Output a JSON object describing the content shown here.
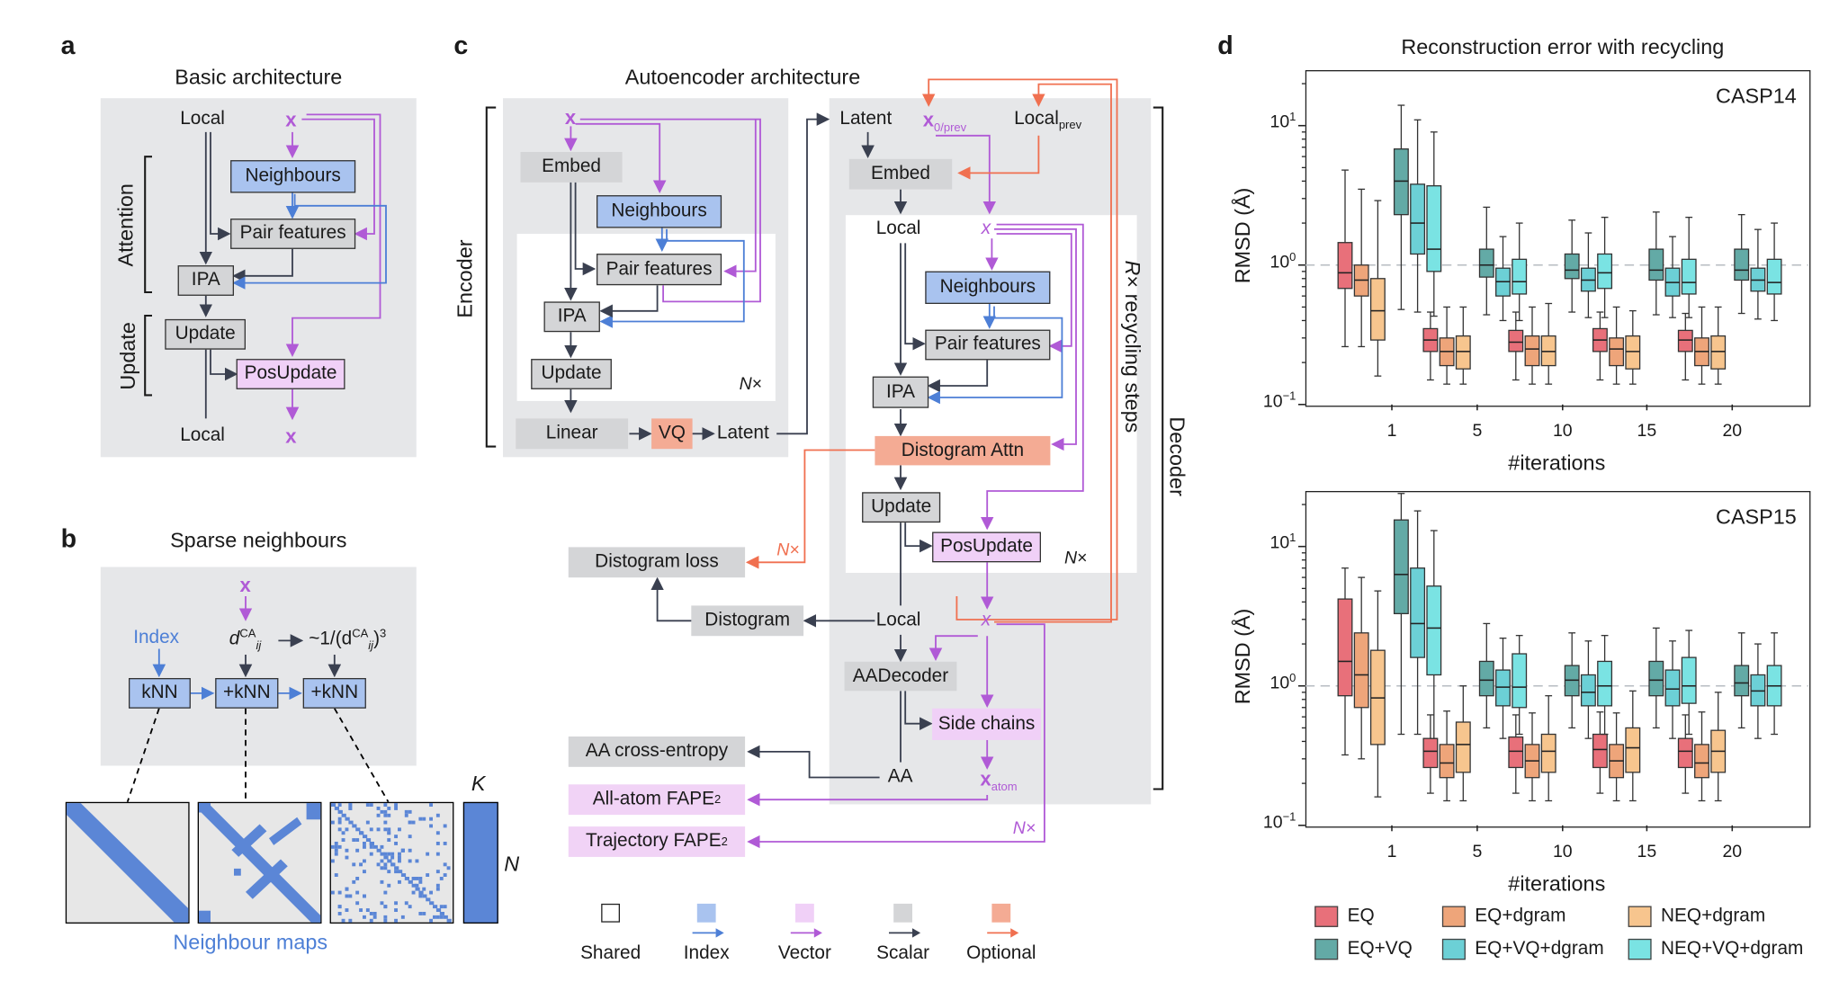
{
  "panel_a": {
    "letter": "a",
    "title": "Basic architecture",
    "local_top": "Local",
    "x_top": "x",
    "neighbours": "Neighbours",
    "pair_features": "Pair features",
    "ipa": "IPA",
    "update": "Update",
    "posupdate": "PosUpdate",
    "local_bottom": "Local",
    "x_bottom": "x",
    "attention_label": "Attention",
    "update_label": "Update"
  },
  "panel_b": {
    "letter": "b",
    "title": "Sparse neighbours",
    "x": "x",
    "index": "Index",
    "d_base": "d",
    "d_sup": "CA",
    "d_sub": "ij",
    "inv_prefix": "~1/(d",
    "inv_sup": "CA",
    "inv_sub": "ij",
    "inv_suffix": ")",
    "inv_pow": "3",
    "knn": "kNN",
    "knn_plus_1": "+kNN",
    "knn_plus_2": "+kNN",
    "maps_caption": "Neighbour maps",
    "k_label": "K",
    "n_label": "N"
  },
  "panel_c": {
    "letter": "c",
    "title": "Autoencoder architecture",
    "encoder_label": "Encoder",
    "decoder_label": "Decoder",
    "recycle_label_r": "R",
    "recycle_label_rest": "× recycling steps",
    "enc": {
      "x": "x",
      "embed": "Embed",
      "neighbours": "Neighbours",
      "pair_features": "Pair features",
      "ipa": "IPA",
      "update": "Update",
      "nx_n": "N",
      "nx_x": "×",
      "linear": "Linear",
      "vq": "VQ",
      "latent": "Latent"
    },
    "dec": {
      "latent": "Latent",
      "x0": "x",
      "x0_sub": "0/prev",
      "local_prev": "Local",
      "local_prev_sub": "prev",
      "embed": "Embed",
      "local": "Local",
      "x_small": "x",
      "neighbours": "Neighbours",
      "pair_features": "Pair features",
      "ipa": "IPA",
      "distogram_attn": "Distogram Attn",
      "update": "Update",
      "posupdate": "PosUpdate",
      "nx_n": "N",
      "nx_x": "×",
      "local2": "Local",
      "x2": "x",
      "aadecoder": "AADecoder",
      "side_chains": "Side chains",
      "aa": "AA",
      "x_atom": "x",
      "x_atom_sub": "atom"
    },
    "outputs": {
      "distogram_loss": "Distogram loss",
      "distogram": "Distogram",
      "nx_orange": "N×",
      "aa_ce": "AA cross-entropy",
      "allatom": "All-atom FAPE",
      "allatom_sup": "2",
      "traj": "Trajectory FAPE",
      "traj_sup": "2",
      "nx_purple": "N×"
    },
    "legend": [
      {
        "label": "Shared",
        "color": "#ffffff",
        "arrow": ""
      },
      {
        "label": "Index",
        "color": "#a9c3ef",
        "arrow": "#4d7fd6"
      },
      {
        "label": "Vector",
        "color": "#f0d0f7",
        "arrow": "#b05ad6"
      },
      {
        "label": "Scalar",
        "color": "#d4d5d7",
        "arrow": "#3a4050"
      },
      {
        "label": "Optional",
        "color": "#f4ab94",
        "arrow": "#f07050"
      }
    ]
  },
  "panel_d": {
    "letter": "d",
    "title": "Reconstruction error with recycling",
    "ylabel": "RMSD (Å)",
    "xlabel": "#iterations",
    "yticks": [
      {
        "base": "10",
        "exp": "1"
      },
      {
        "base": "10",
        "exp": "0"
      },
      {
        "base": "10",
        "exp": "−1"
      }
    ],
    "legend": [
      {
        "label": "EQ",
        "color": "#e8707a"
      },
      {
        "label": "EQ+dgram",
        "color": "#eea57a"
      },
      {
        "label": "NEQ+dgram",
        "color": "#f7c58e"
      },
      {
        "label": "EQ+VQ",
        "color": "#63aaa6"
      },
      {
        "label": "EQ+VQ+dgram",
        "color": "#6cd0d6"
      },
      {
        "label": "NEQ+VQ+dgram",
        "color": "#7ae3e3"
      }
    ]
  },
  "chart_data": [
    {
      "type": "box",
      "title": "CASP14",
      "xlabel": "#iterations",
      "ylabel": "RMSD (Å)",
      "yscale": "log",
      "ylim": [
        0.1,
        25
      ],
      "reference_line": 1,
      "categories": [
        "1",
        "5",
        "10",
        "15",
        "20"
      ],
      "series": [
        {
          "name": "EQ",
          "color": "#e8707a",
          "boxes": [
            [
              0.26,
              0.68,
              0.88,
              1.45,
              4.8
            ],
            [
              0.15,
              0.24,
              0.29,
              0.35,
              0.46
            ],
            [
              0.15,
              0.24,
              0.28,
              0.34,
              0.46
            ],
            [
              0.15,
              0.24,
              0.29,
              0.35,
              0.46
            ],
            [
              0.15,
              0.24,
              0.29,
              0.34,
              0.45
            ]
          ]
        },
        {
          "name": "EQ+dgram",
          "color": "#eea57a",
          "boxes": [
            [
              0.26,
              0.6,
              0.78,
              1.0,
              3.5
            ],
            [
              0.14,
              0.19,
              0.24,
              0.3,
              0.5
            ],
            [
              0.14,
              0.19,
              0.25,
              0.31,
              0.5
            ],
            [
              0.14,
              0.19,
              0.25,
              0.3,
              0.5
            ],
            [
              0.14,
              0.19,
              0.24,
              0.3,
              0.5
            ]
          ]
        },
        {
          "name": "NEQ+dgram",
          "color": "#f7c58e",
          "boxes": [
            [
              0.16,
              0.29,
              0.47,
              0.8,
              2.9
            ],
            [
              0.14,
              0.18,
              0.24,
              0.31,
              0.5
            ],
            [
              0.14,
              0.19,
              0.24,
              0.31,
              0.53
            ],
            [
              0.14,
              0.18,
              0.24,
              0.31,
              0.47
            ],
            [
              0.14,
              0.18,
              0.24,
              0.31,
              0.5
            ]
          ]
        },
        {
          "name": "EQ+VQ",
          "color": "#63aaa6",
          "boxes": [
            [
              0.48,
              2.3,
              4.0,
              6.8,
              14.0
            ],
            [
              0.44,
              0.82,
              1.0,
              1.3,
              2.6
            ],
            [
              0.46,
              0.8,
              0.92,
              1.2,
              2.1
            ],
            [
              0.44,
              0.78,
              0.92,
              1.3,
              2.4
            ],
            [
              0.45,
              0.78,
              0.92,
              1.3,
              2.3
            ]
          ]
        },
        {
          "name": "EQ+VQ+dgram",
          "color": "#6cd0d6",
          "boxes": [
            [
              0.46,
              1.2,
              2.0,
              3.8,
              11.0
            ],
            [
              0.4,
              0.6,
              0.76,
              0.95,
              1.6
            ],
            [
              0.42,
              0.65,
              0.78,
              0.95,
              1.7
            ],
            [
              0.42,
              0.6,
              0.75,
              0.95,
              1.6
            ],
            [
              0.41,
              0.65,
              0.78,
              0.95,
              1.8
            ]
          ]
        },
        {
          "name": "NEQ+VQ+dgram",
          "color": "#7ae3e3",
          "boxes": [
            [
              0.43,
              0.9,
              1.3,
              3.7,
              9.0
            ],
            [
              0.4,
              0.62,
              0.76,
              1.1,
              2.0
            ],
            [
              0.42,
              0.68,
              0.88,
              1.2,
              2.2
            ],
            [
              0.42,
              0.62,
              0.75,
              1.1,
              2.2
            ],
            [
              0.4,
              0.62,
              0.75,
              1.1,
              2.0
            ]
          ]
        }
      ]
    },
    {
      "type": "box",
      "title": "CASP15",
      "xlabel": "#iterations",
      "ylabel": "RMSD (Å)",
      "yscale": "log",
      "ylim": [
        0.1,
        25
      ],
      "reference_line": 1,
      "categories": [
        "1",
        "5",
        "10",
        "15",
        "20"
      ],
      "series": [
        {
          "name": "EQ",
          "color": "#e8707a",
          "boxes": [
            [
              0.32,
              0.85,
              1.5,
              4.2,
              7.0
            ],
            [
              0.17,
              0.26,
              0.34,
              0.42,
              0.62
            ],
            [
              0.17,
              0.26,
              0.34,
              0.43,
              0.62
            ],
            [
              0.17,
              0.26,
              0.35,
              0.45,
              0.65
            ],
            [
              0.17,
              0.26,
              0.34,
              0.42,
              0.62
            ]
          ]
        },
        {
          "name": "EQ+dgram",
          "color": "#eea57a",
          "boxes": [
            [
              0.3,
              0.7,
              1.2,
              2.4,
              6.0
            ],
            [
              0.15,
              0.22,
              0.28,
              0.38,
              0.66
            ],
            [
              0.15,
              0.22,
              0.29,
              0.38,
              0.64
            ],
            [
              0.15,
              0.22,
              0.29,
              0.38,
              0.64
            ],
            [
              0.15,
              0.22,
              0.28,
              0.38,
              0.65
            ]
          ]
        },
        {
          "name": "NEQ+dgram",
          "color": "#f7c58e",
          "boxes": [
            [
              0.16,
              0.38,
              0.82,
              1.8,
              4.8
            ],
            [
              0.15,
              0.24,
              0.38,
              0.55,
              1.0
            ],
            [
              0.15,
              0.24,
              0.34,
              0.45,
              0.85
            ],
            [
              0.15,
              0.24,
              0.36,
              0.5,
              0.92
            ],
            [
              0.15,
              0.24,
              0.34,
              0.48,
              0.9
            ]
          ]
        },
        {
          "name": "EQ+VQ",
          "color": "#63aaa6",
          "boxes": [
            [
              0.45,
              3.3,
              6.3,
              15.5,
              24.0
            ],
            [
              0.5,
              0.85,
              1.1,
              1.5,
              2.8
            ],
            [
              0.5,
              0.85,
              1.1,
              1.4,
              2.4
            ],
            [
              0.5,
              0.85,
              1.1,
              1.5,
              2.6
            ],
            [
              0.5,
              0.85,
              1.05,
              1.4,
              2.4
            ]
          ]
        },
        {
          "name": "EQ+VQ+dgram",
          "color": "#6cd0d6",
          "boxes": [
            [
              0.45,
              1.6,
              2.8,
              7.0,
              18.0
            ],
            [
              0.42,
              0.72,
              0.98,
              1.3,
              2.2
            ],
            [
              0.42,
              0.72,
              0.9,
              1.2,
              2.1
            ],
            [
              0.42,
              0.72,
              0.95,
              1.3,
              2.1
            ],
            [
              0.42,
              0.72,
              0.92,
              1.2,
              2.0
            ]
          ]
        },
        {
          "name": "NEQ+VQ+dgram",
          "color": "#7ae3e3",
          "boxes": [
            [
              0.42,
              1.2,
              2.6,
              5.2,
              13.0
            ],
            [
              0.45,
              0.7,
              0.98,
              1.7,
              2.3
            ],
            [
              0.45,
              0.72,
              1.0,
              1.5,
              2.3
            ],
            [
              0.45,
              0.75,
              1.0,
              1.6,
              2.5
            ],
            [
              0.45,
              0.72,
              1.0,
              1.4,
              2.4
            ]
          ]
        }
      ]
    }
  ]
}
